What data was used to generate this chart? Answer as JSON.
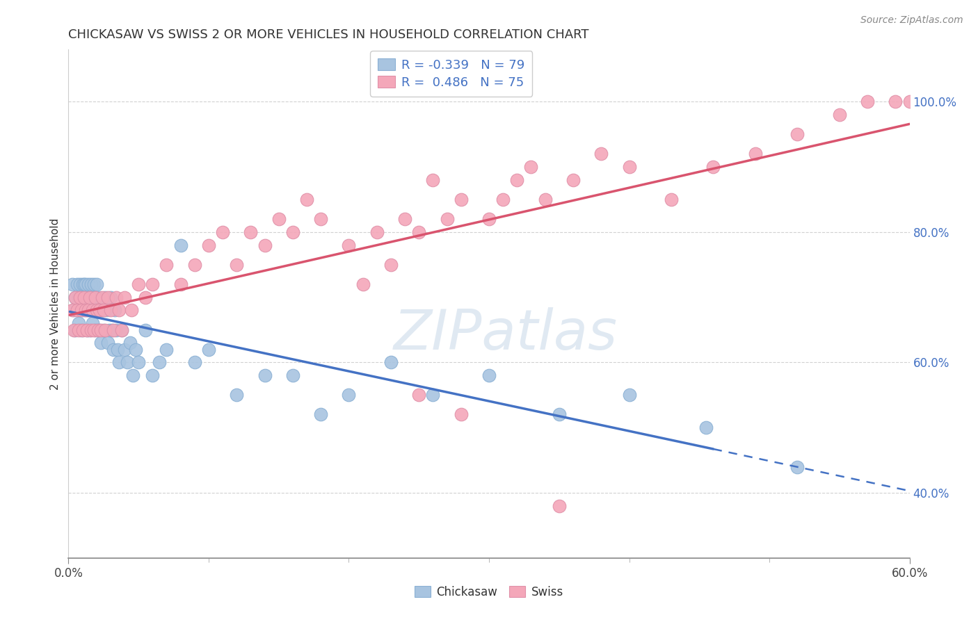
{
  "title": "CHICKASAW VS SWISS 2 OR MORE VEHICLES IN HOUSEHOLD CORRELATION CHART",
  "source": "Source: ZipAtlas.com",
  "ylabel": "2 or more Vehicles in Household",
  "xmin": 0.0,
  "xmax": 0.6,
  "ymin": 0.3,
  "ymax": 1.08,
  "xtick_vals": [
    0.0,
    0.6
  ],
  "xtick_labels": [
    "0.0%",
    "60.0%"
  ],
  "ytick_vals": [
    0.4,
    0.6,
    0.8,
    1.0
  ],
  "ytick_labels": [
    "40.0%",
    "60.0%",
    "80.0%",
    "100.0%"
  ],
  "chickasaw_R": -0.339,
  "chickasaw_N": 79,
  "swiss_R": 0.486,
  "swiss_N": 75,
  "chickasaw_color": "#a8c4e0",
  "swiss_color": "#f4a7b9",
  "chickasaw_line_color": "#4472c4",
  "swiss_line_color": "#d9546e",
  "watermark": "ZIPatlas",
  "chickasaw_x": [
    0.003,
    0.004,
    0.005,
    0.005,
    0.006,
    0.006,
    0.007,
    0.007,
    0.008,
    0.008,
    0.009,
    0.009,
    0.01,
    0.01,
    0.011,
    0.011,
    0.012,
    0.012,
    0.013,
    0.013,
    0.014,
    0.014,
    0.015,
    0.015,
    0.016,
    0.016,
    0.017,
    0.017,
    0.018,
    0.018,
    0.019,
    0.019,
    0.02,
    0.02,
    0.021,
    0.021,
    0.022,
    0.022,
    0.023,
    0.023,
    0.024,
    0.025,
    0.026,
    0.027,
    0.028,
    0.029,
    0.03,
    0.031,
    0.032,
    0.033,
    0.034,
    0.035,
    0.036,
    0.038,
    0.04,
    0.042,
    0.044,
    0.046,
    0.048,
    0.05,
    0.055,
    0.06,
    0.065,
    0.07,
    0.08,
    0.09,
    0.1,
    0.12,
    0.14,
    0.16,
    0.18,
    0.2,
    0.23,
    0.26,
    0.3,
    0.35,
    0.4,
    0.455,
    0.52
  ],
  "chickasaw_y": [
    0.72,
    0.68,
    0.7,
    0.65,
    0.72,
    0.68,
    0.7,
    0.66,
    0.72,
    0.68,
    0.7,
    0.65,
    0.72,
    0.68,
    0.72,
    0.7,
    0.68,
    0.72,
    0.7,
    0.65,
    0.68,
    0.72,
    0.7,
    0.65,
    0.72,
    0.68,
    0.7,
    0.66,
    0.68,
    0.72,
    0.65,
    0.7,
    0.68,
    0.72,
    0.65,
    0.68,
    0.65,
    0.7,
    0.68,
    0.63,
    0.68,
    0.65,
    0.7,
    0.68,
    0.63,
    0.65,
    0.7,
    0.65,
    0.62,
    0.68,
    0.65,
    0.62,
    0.6,
    0.65,
    0.62,
    0.6,
    0.63,
    0.58,
    0.62,
    0.6,
    0.65,
    0.58,
    0.6,
    0.62,
    0.78,
    0.6,
    0.62,
    0.55,
    0.58,
    0.58,
    0.52,
    0.55,
    0.6,
    0.55,
    0.58,
    0.52,
    0.55,
    0.5,
    0.44
  ],
  "swiss_x": [
    0.003,
    0.004,
    0.005,
    0.006,
    0.007,
    0.008,
    0.009,
    0.01,
    0.011,
    0.012,
    0.013,
    0.014,
    0.015,
    0.016,
    0.017,
    0.018,
    0.019,
    0.02,
    0.021,
    0.022,
    0.023,
    0.024,
    0.025,
    0.026,
    0.028,
    0.03,
    0.032,
    0.034,
    0.036,
    0.038,
    0.04,
    0.045,
    0.05,
    0.055,
    0.06,
    0.07,
    0.08,
    0.09,
    0.1,
    0.11,
    0.12,
    0.13,
    0.14,
    0.15,
    0.16,
    0.17,
    0.18,
    0.2,
    0.21,
    0.22,
    0.23,
    0.24,
    0.25,
    0.26,
    0.27,
    0.28,
    0.3,
    0.31,
    0.32,
    0.33,
    0.34,
    0.36,
    0.38,
    0.4,
    0.43,
    0.46,
    0.49,
    0.52,
    0.55,
    0.57,
    0.59,
    0.6,
    0.25,
    0.28,
    0.35
  ],
  "swiss_y": [
    0.68,
    0.65,
    0.7,
    0.68,
    0.65,
    0.7,
    0.68,
    0.65,
    0.7,
    0.68,
    0.65,
    0.68,
    0.7,
    0.65,
    0.68,
    0.65,
    0.7,
    0.68,
    0.65,
    0.68,
    0.65,
    0.7,
    0.68,
    0.65,
    0.7,
    0.68,
    0.65,
    0.7,
    0.68,
    0.65,
    0.7,
    0.68,
    0.72,
    0.7,
    0.72,
    0.75,
    0.72,
    0.75,
    0.78,
    0.8,
    0.75,
    0.8,
    0.78,
    0.82,
    0.8,
    0.85,
    0.82,
    0.78,
    0.72,
    0.8,
    0.75,
    0.82,
    0.8,
    0.88,
    0.82,
    0.85,
    0.82,
    0.85,
    0.88,
    0.9,
    0.85,
    0.88,
    0.92,
    0.9,
    0.85,
    0.9,
    0.92,
    0.95,
    0.98,
    1.0,
    1.0,
    1.0,
    0.55,
    0.52,
    0.38
  ]
}
